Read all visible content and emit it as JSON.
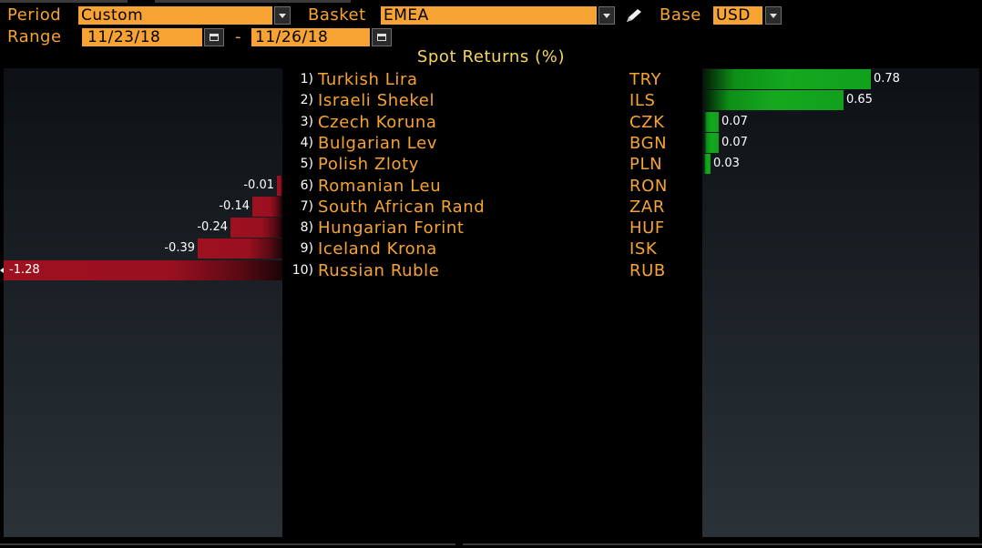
{
  "controls": {
    "period_label": "Period",
    "period_value": "Custom",
    "basket_label": "Basket",
    "basket_value": "EMEA",
    "base_label": "Base",
    "base_value": "USD",
    "range_label": "Range",
    "range_start": "11/23/18",
    "range_sep": "-",
    "range_end": "11/26/18"
  },
  "title": "Spot Returns (%)",
  "colors": {
    "accent": "#f7a334",
    "positive": "#14a91f",
    "negative": "#9d1120",
    "title": "#f7d65e"
  },
  "icons": [
    "chevron-down-icon",
    "pencil-icon",
    "calendar-icon"
  ],
  "chart_data": {
    "type": "bar",
    "title": "Spot Returns (%)",
    "categories": [
      "Turkish Lira",
      "Israeli Shekel",
      "Czech Koruna",
      "Bulgarian Lev",
      "Polish Zloty",
      "Romanian Leu",
      "South African Rand",
      "Hungarian Forint",
      "Iceland Krona",
      "Russian Ruble"
    ],
    "values": [
      0.78,
      0.65,
      0.07,
      0.07,
      0.03,
      -0.01,
      -0.14,
      -0.24,
      -0.39,
      -1.28
    ]
  },
  "rows": [
    {
      "rank": "1)",
      "name": "Turkish Lira",
      "code": "TRY",
      "label": "0.78"
    },
    {
      "rank": "2)",
      "name": "Israeli Shekel",
      "code": "ILS",
      "label": "0.65"
    },
    {
      "rank": "3)",
      "name": "Czech Koruna",
      "code": "CZK",
      "label": "0.07"
    },
    {
      "rank": "4)",
      "name": "Bulgarian Lev",
      "code": "BGN",
      "label": "0.07"
    },
    {
      "rank": "5)",
      "name": "Polish Zloty",
      "code": "PLN",
      "label": "0.03"
    },
    {
      "rank": "6)",
      "name": "Romanian Leu",
      "code": "RON",
      "label": "-0.01"
    },
    {
      "rank": "7)",
      "name": "South African Rand",
      "code": "ZAR",
      "label": "-0.14"
    },
    {
      "rank": "8)",
      "name": "Hungarian Forint",
      "code": "HUF",
      "label": "-0.24"
    },
    {
      "rank": "9)",
      "name": "Iceland Krona",
      "code": "ISK",
      "label": "-0.39"
    },
    {
      "rank": "10)",
      "name": "Russian Ruble",
      "code": "RUB",
      "label": "-1.28"
    }
  ]
}
